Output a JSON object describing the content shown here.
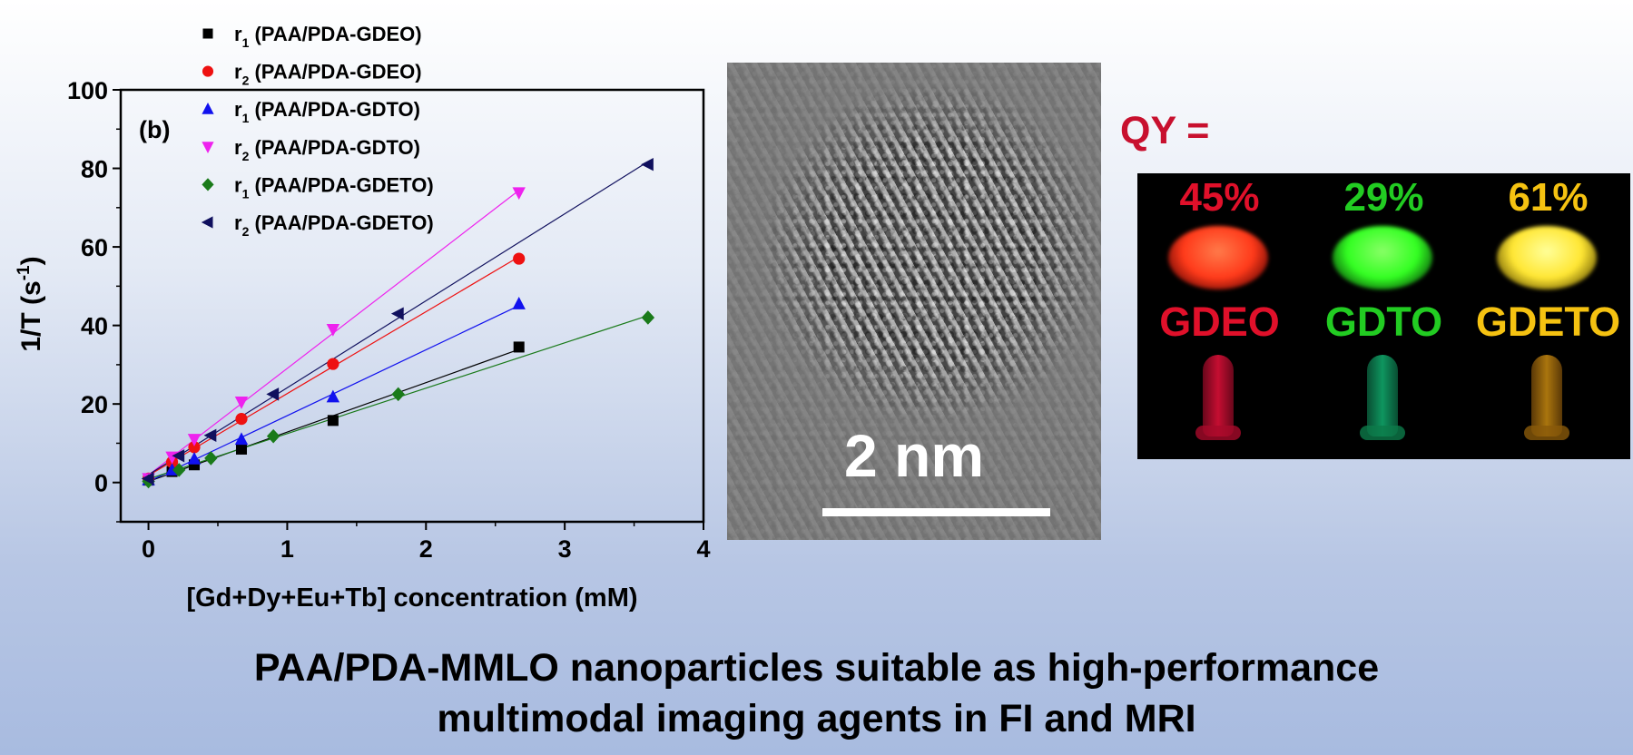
{
  "chart_data": {
    "type": "scatter",
    "panel_label": "(b)",
    "xlabel": "[Gd+Dy+Eu+Tb] concentration (mM)",
    "ylabel_main": "1/T (s",
    "ylabel_sup": "-1",
    "ylabel_end": ")",
    "xlim": [
      -0.2,
      4
    ],
    "ylim": [
      -10,
      100
    ],
    "x_ticks": [
      0,
      1,
      2,
      3,
      4
    ],
    "y_ticks": [
      0,
      20,
      40,
      60,
      80,
      100
    ],
    "legend_placement": "top-left, above plot",
    "series": [
      {
        "label_main": "r",
        "label_sub": "1",
        "label_rest": " (PAA/PDA-GDEO)",
        "color": "#000000",
        "marker": "square",
        "x": [
          0,
          0.17,
          0.33,
          0.67,
          1.33,
          2.67
        ],
        "y": [
          0.6,
          2.8,
          4.5,
          8.5,
          15.8,
          34.5
        ]
      },
      {
        "label_main": "r",
        "label_sub": "2",
        "label_rest": " (PAA/PDA-GDEO)",
        "color": "#ee1111",
        "marker": "circle",
        "x": [
          0,
          0.17,
          0.33,
          0.67,
          1.33,
          2.67
        ],
        "y": [
          1,
          5.2,
          9,
          16.2,
          30.2,
          57
        ]
      },
      {
        "label_main": "r",
        "label_sub": "1",
        "label_rest": " (PAA/PDA-GDTO)",
        "color": "#1111ee",
        "marker": "triangle-up",
        "x": [
          0,
          0.17,
          0.33,
          0.67,
          1.33,
          2.67
        ],
        "y": [
          0.7,
          3.2,
          6,
          11,
          21.8,
          45.5
        ]
      },
      {
        "label_main": "r",
        "label_sub": "2",
        "label_rest": " (PAA/PDA-GDTO)",
        "color": "#ee22ee",
        "marker": "triangle-down",
        "x": [
          0,
          0.17,
          0.33,
          0.67,
          1.33,
          2.67
        ],
        "y": [
          1,
          6.5,
          11,
          20.5,
          39,
          73.8
        ]
      },
      {
        "label_main": "r",
        "label_sub": "1",
        "label_rest": " (PAA/PDA-GDETO)",
        "color": "#1a7a1a",
        "marker": "diamond",
        "x": [
          0,
          0.22,
          0.45,
          0.9,
          1.8,
          3.6
        ],
        "y": [
          0.3,
          3.2,
          6.2,
          11.8,
          22.5,
          42
        ]
      },
      {
        "label_main": "r",
        "label_sub": "2",
        "label_rest": " (PAA/PDA-GDETO)",
        "color": "#10105e",
        "marker": "triangle-left",
        "x": [
          0,
          0.22,
          0.45,
          0.9,
          1.8,
          3.6
        ],
        "y": [
          1,
          6.8,
          12,
          22.5,
          43,
          81
        ]
      }
    ]
  },
  "tem": {
    "scale_label": "2 nm"
  },
  "qy": {
    "label": "QY =",
    "samples": [
      {
        "percent": "45%",
        "name": "GDEO",
        "color": "#e0102a",
        "powder": "#ff3a1a",
        "tube": "#e8103a"
      },
      {
        "percent": "29%",
        "name": "GDTO",
        "color": "#22cc22",
        "powder": "#33ff22",
        "tube": "#11b070"
      },
      {
        "percent": "61%",
        "name": "GDETO",
        "color": "#f5c211",
        "powder": "#ffe633",
        "tube": "#c88a10"
      }
    ]
  },
  "caption": {
    "line1": "PAA/PDA-MMLO nanoparticles suitable as high-performance",
    "line2": "multimodal imaging agents in FI and MRI"
  }
}
